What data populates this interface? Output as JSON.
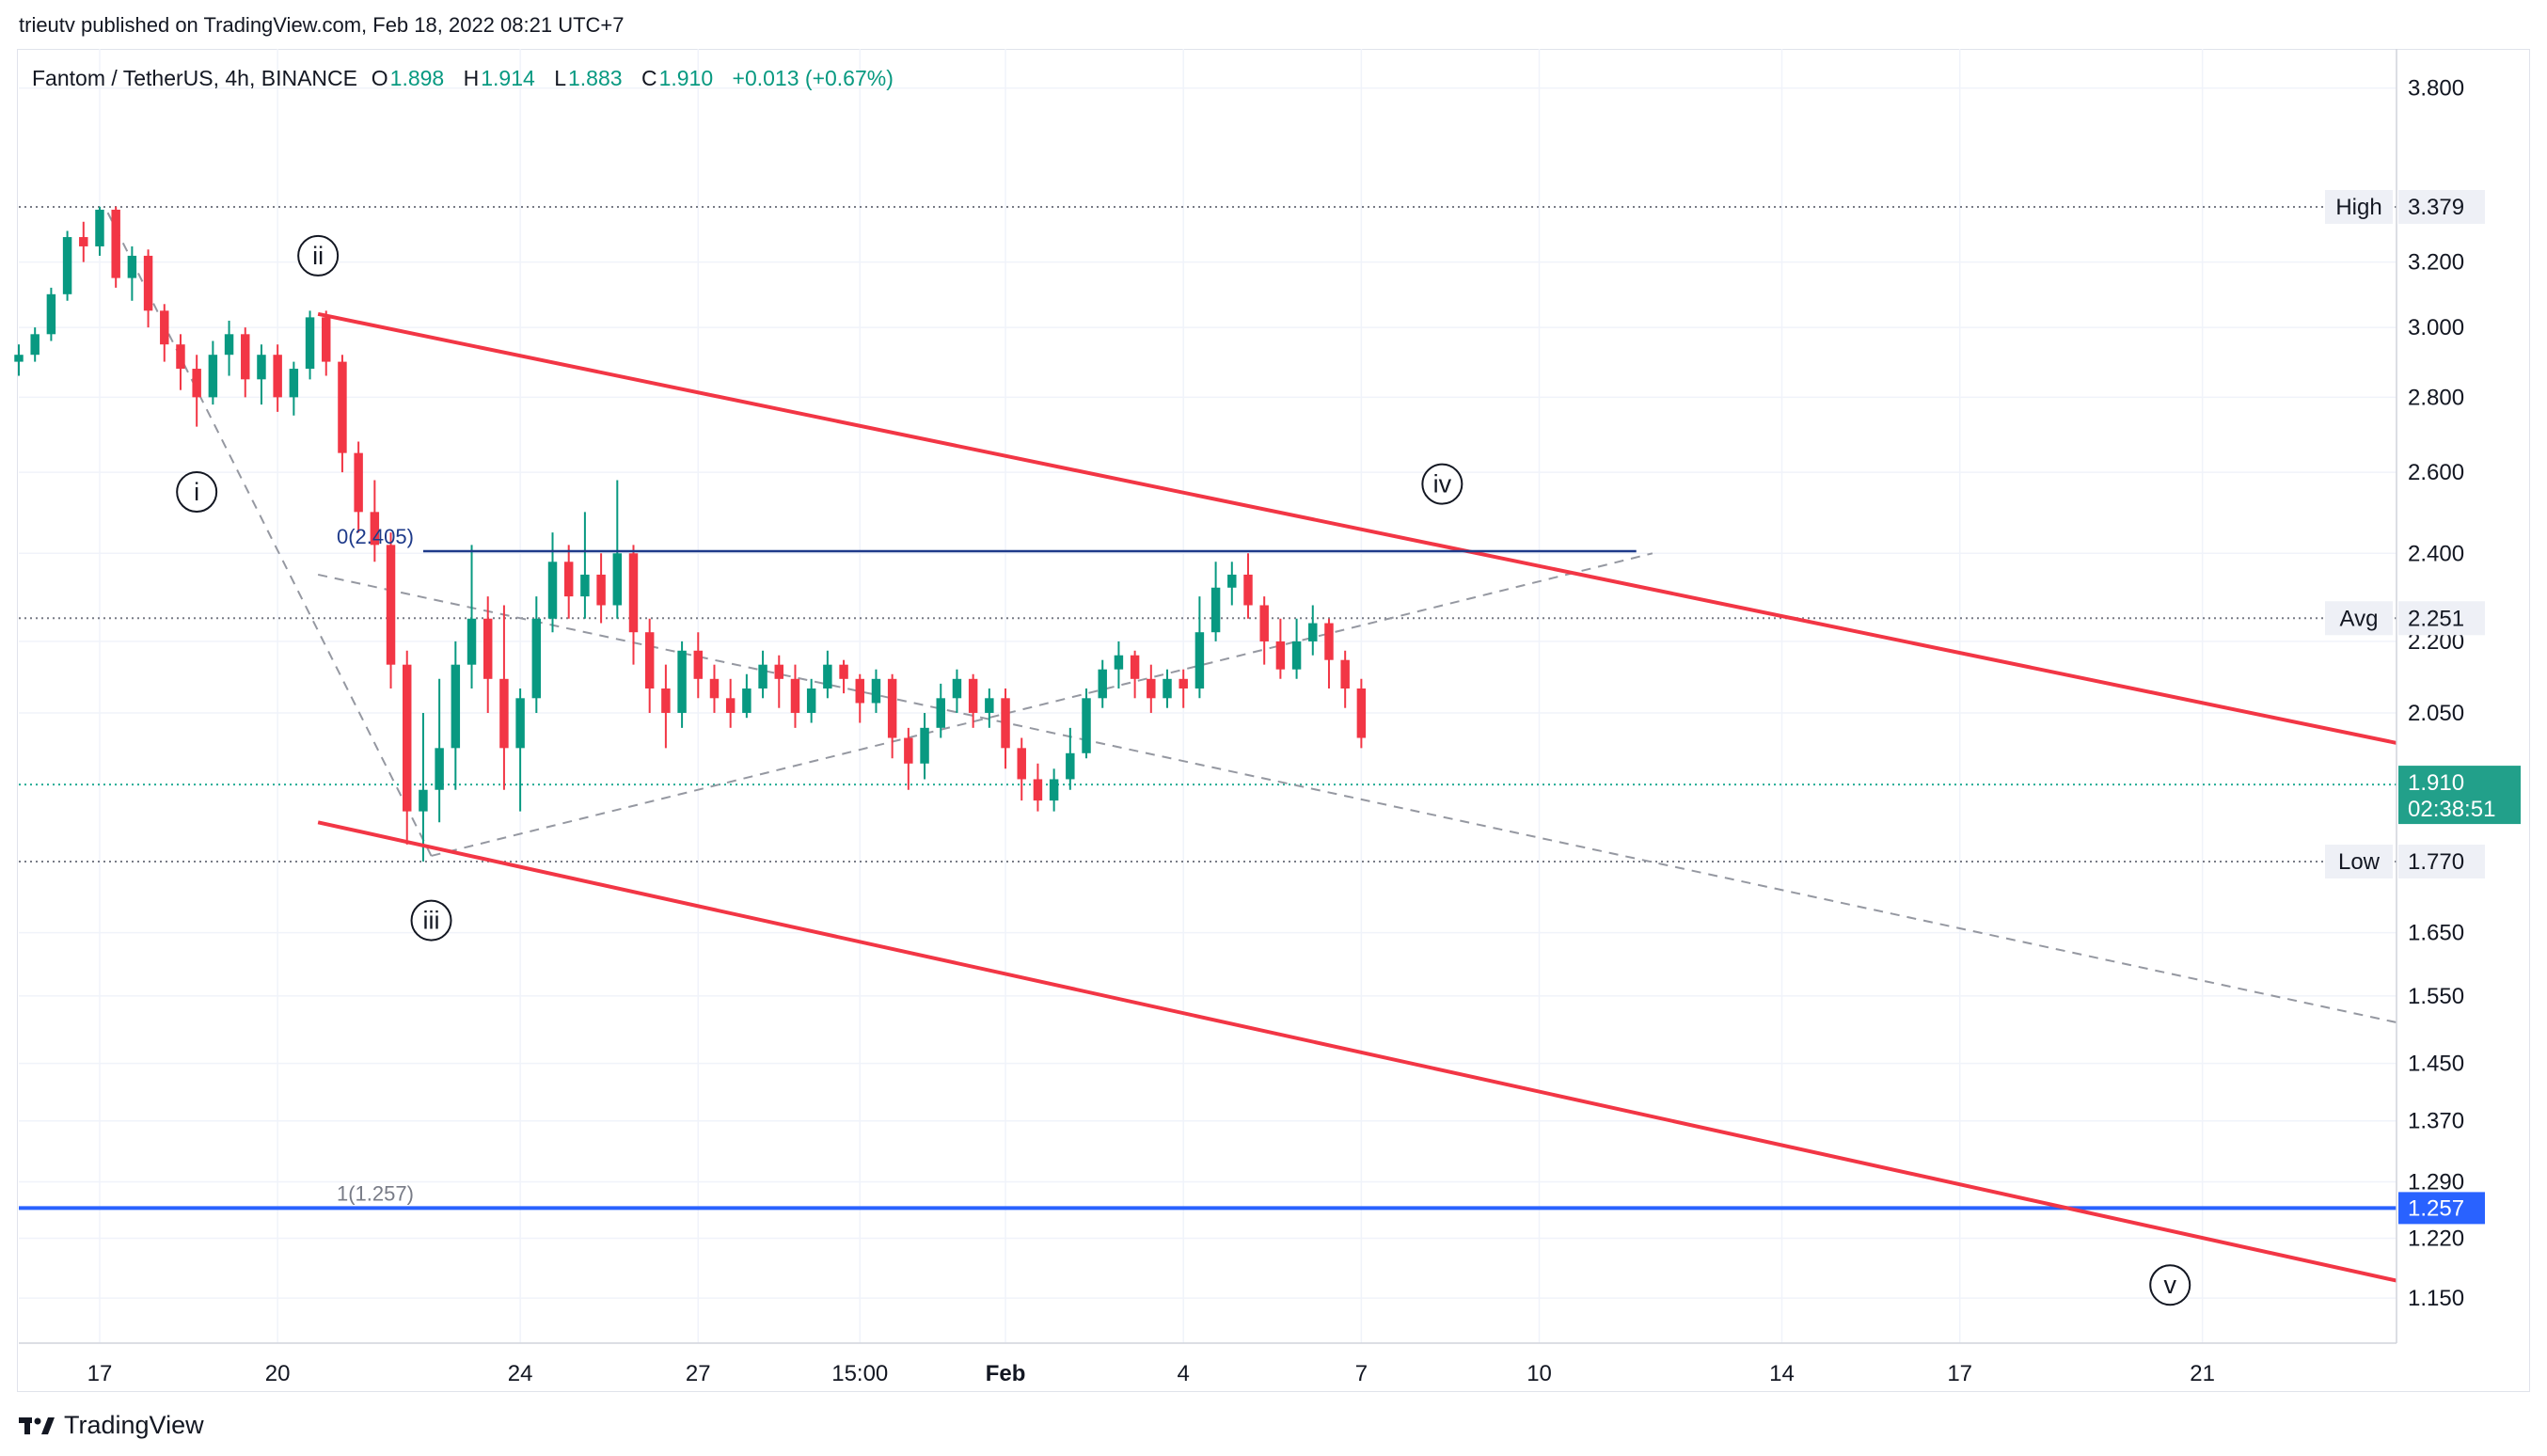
{
  "header": {
    "publisher": "trieutv published on TradingView.com, Feb 18, 2022 08:21 UTC+7"
  },
  "legend": {
    "symbol": "Fantom / TetherUS, 4h, BINANCE",
    "open_label": "O",
    "open": "1.898",
    "high_label": "H",
    "high": "1.914",
    "low_label": "L",
    "low": "1.883",
    "close_label": "C",
    "close": "1.910",
    "change": "+0.013 (+0.67%)"
  },
  "footer": {
    "brand": "TradingView"
  },
  "colors": {
    "up": "#089981",
    "down": "#f23645",
    "channel": "#f23645",
    "fib_line": "#1e3a8a",
    "target_line": "#2962ff",
    "last_price_bg": "#22a08a"
  },
  "chart_data": {
    "type": "candlestick",
    "title": "Fantom / TetherUS, 4h, BINANCE",
    "y_scale": "log",
    "ylim": [
      1.1,
      3.95
    ],
    "x_domain": [
      0,
      147
    ],
    "y_ticks": [
      "3.800",
      "3.200",
      "3.000",
      "2.800",
      "2.600",
      "2.400",
      "2.200",
      "2.050",
      "1.650",
      "1.550",
      "1.450",
      "1.370",
      "1.290",
      "1.220",
      "1.150"
    ],
    "y_tick_values": [
      3.8,
      3.2,
      3.0,
      2.8,
      2.6,
      2.4,
      2.2,
      2.05,
      1.65,
      1.55,
      1.45,
      1.37,
      1.29,
      1.22,
      1.15
    ],
    "x_ticks": [
      {
        "label": "17",
        "x": 5
      },
      {
        "label": "20",
        "x": 16
      },
      {
        "label": "24",
        "x": 31
      },
      {
        "label": "27",
        "x": 42
      },
      {
        "label": "15:00",
        "x": 52
      },
      {
        "label": "Feb",
        "x": 61
      },
      {
        "label": "4",
        "x": 72
      },
      {
        "label": "7",
        "x": 83
      },
      {
        "label": "10",
        "x": 94
      },
      {
        "label": "14",
        "x": 109
      },
      {
        "label": "17",
        "x": 120
      },
      {
        "label": "21",
        "x": 135
      }
    ],
    "price_labels": {
      "high_tag": "High",
      "high_value": "3.379",
      "high_price": 3.379,
      "avg_tag": "Avg",
      "avg_value": "2.251",
      "avg_price": 2.251,
      "low_tag": "Low",
      "low_value": "1.770",
      "low_price": 1.77,
      "last_price": "1.910",
      "last_price_value": 1.91,
      "countdown": "02:38:51",
      "target_value": "1.257",
      "target_price": 1.257
    },
    "fib_levels": [
      {
        "label": "0(2.405)",
        "price": 2.405,
        "x_start": 25,
        "x_end": 100
      },
      {
        "label": "1(1.257)",
        "price": 1.257,
        "x_start": 25,
        "x_end": 100
      }
    ],
    "channel_lines": [
      {
        "name": "upper",
        "x1": 18.5,
        "y1": 3.04,
        "x2": 147,
        "y2": 1.99
      },
      {
        "name": "lower",
        "x1": 18.5,
        "y1": 1.84,
        "x2": 147,
        "y2": 1.17
      }
    ],
    "dashed_lines": [
      {
        "x1": 5.5,
        "y1": 3.36,
        "x2": 25.5,
        "y2": 1.78
      },
      {
        "x1": 25.5,
        "y1": 1.78,
        "x2": 101,
        "y2": 2.4
      },
      {
        "x1": 18.5,
        "y1": 2.35,
        "x2": 147,
        "y2": 1.51
      }
    ],
    "wave_labels": [
      {
        "label": "i",
        "x": 11,
        "y": 2.55
      },
      {
        "label": "ii",
        "x": 18.5,
        "y": 3.22
      },
      {
        "label": "iii",
        "x": 25.5,
        "y": 1.67
      },
      {
        "label": "iv",
        "x": 88,
        "y": 2.57
      },
      {
        "label": "v",
        "x": 133,
        "y": 1.165
      }
    ],
    "candles": [
      [
        0,
        2.9,
        2.92,
        2.86,
        2.95
      ],
      [
        1,
        2.92,
        2.98,
        2.9,
        3.0
      ],
      [
        2,
        2.98,
        3.1,
        2.96,
        3.12
      ],
      [
        3,
        3.1,
        3.28,
        3.08,
        3.3
      ],
      [
        4,
        3.28,
        3.25,
        3.2,
        3.33
      ],
      [
        5,
        3.25,
        3.37,
        3.22,
        3.38
      ],
      [
        6,
        3.37,
        3.15,
        3.12,
        3.38
      ],
      [
        7,
        3.15,
        3.22,
        3.08,
        3.25
      ],
      [
        8,
        3.22,
        3.05,
        3.0,
        3.24
      ],
      [
        9,
        3.05,
        2.95,
        2.9,
        3.07
      ],
      [
        10,
        2.95,
        2.88,
        2.82,
        2.98
      ],
      [
        11,
        2.88,
        2.8,
        2.72,
        2.92
      ],
      [
        12,
        2.8,
        2.92,
        2.78,
        2.96
      ],
      [
        13,
        2.92,
        2.98,
        2.86,
        3.02
      ],
      [
        14,
        2.98,
        2.85,
        2.8,
        3.0
      ],
      [
        15,
        2.85,
        2.92,
        2.78,
        2.95
      ],
      [
        16,
        2.92,
        2.8,
        2.76,
        2.95
      ],
      [
        17,
        2.8,
        2.88,
        2.75,
        2.9
      ],
      [
        18,
        2.88,
        3.03,
        2.85,
        3.05
      ],
      [
        19,
        3.03,
        2.9,
        2.86,
        3.05
      ],
      [
        20,
        2.9,
        2.65,
        2.6,
        2.92
      ],
      [
        21,
        2.65,
        2.5,
        2.45,
        2.68
      ],
      [
        22,
        2.5,
        2.42,
        2.38,
        2.58
      ],
      [
        23,
        2.42,
        2.15,
        2.1,
        2.45
      ],
      [
        24,
        2.15,
        1.86,
        1.8,
        2.18
      ],
      [
        25,
        1.86,
        1.9,
        1.77,
        2.05
      ],
      [
        26,
        1.9,
        1.98,
        1.84,
        2.12
      ],
      [
        27,
        1.98,
        2.15,
        1.9,
        2.2
      ],
      [
        28,
        2.15,
        2.25,
        2.1,
        2.42
      ],
      [
        29,
        2.25,
        2.12,
        2.05,
        2.3
      ],
      [
        30,
        2.12,
        1.98,
        1.9,
        2.28
      ],
      [
        31,
        1.98,
        2.08,
        1.86,
        2.1
      ],
      [
        32,
        2.08,
        2.25,
        2.05,
        2.3
      ],
      [
        33,
        2.25,
        2.38,
        2.22,
        2.45
      ],
      [
        34,
        2.38,
        2.3,
        2.25,
        2.42
      ],
      [
        35,
        2.3,
        2.35,
        2.25,
        2.5
      ],
      [
        36,
        2.35,
        2.28,
        2.24,
        2.4
      ],
      [
        37,
        2.28,
        2.4,
        2.25,
        2.58
      ],
      [
        38,
        2.4,
        2.22,
        2.15,
        2.42
      ],
      [
        39,
        2.22,
        2.1,
        2.05,
        2.25
      ],
      [
        40,
        2.1,
        2.05,
        1.98,
        2.15
      ],
      [
        41,
        2.05,
        2.18,
        2.02,
        2.2
      ],
      [
        42,
        2.18,
        2.12,
        2.08,
        2.22
      ],
      [
        43,
        2.12,
        2.08,
        2.05,
        2.15
      ],
      [
        44,
        2.08,
        2.05,
        2.02,
        2.12
      ],
      [
        45,
        2.05,
        2.1,
        2.04,
        2.13
      ],
      [
        46,
        2.1,
        2.15,
        2.08,
        2.18
      ],
      [
        47,
        2.15,
        2.12,
        2.06,
        2.17
      ],
      [
        48,
        2.12,
        2.05,
        2.02,
        2.15
      ],
      [
        49,
        2.05,
        2.1,
        2.03,
        2.12
      ],
      [
        50,
        2.1,
        2.15,
        2.08,
        2.18
      ],
      [
        51,
        2.15,
        2.12,
        2.09,
        2.16
      ],
      [
        52,
        2.12,
        2.07,
        2.03,
        2.13
      ],
      [
        53,
        2.07,
        2.12,
        2.05,
        2.14
      ],
      [
        54,
        2.12,
        2.0,
        1.96,
        2.13
      ],
      [
        55,
        2.0,
        1.95,
        1.9,
        2.02
      ],
      [
        56,
        1.95,
        2.02,
        1.92,
        2.05
      ],
      [
        57,
        2.02,
        2.08,
        2.0,
        2.11
      ],
      [
        58,
        2.08,
        2.12,
        2.05,
        2.14
      ],
      [
        59,
        2.12,
        2.05,
        2.02,
        2.13
      ],
      [
        60,
        2.05,
        2.08,
        2.02,
        2.1
      ],
      [
        61,
        2.08,
        1.98,
        1.94,
        2.1
      ],
      [
        62,
        1.98,
        1.92,
        1.88,
        2.0
      ],
      [
        63,
        1.92,
        1.88,
        1.86,
        1.95
      ],
      [
        64,
        1.88,
        1.92,
        1.86,
        1.94
      ],
      [
        65,
        1.92,
        1.97,
        1.9,
        2.02
      ],
      [
        66,
        1.97,
        2.08,
        1.96,
        2.1
      ],
      [
        67,
        2.08,
        2.14,
        2.06,
        2.16
      ],
      [
        68,
        2.14,
        2.17,
        2.1,
        2.2
      ],
      [
        69,
        2.17,
        2.12,
        2.08,
        2.18
      ],
      [
        70,
        2.12,
        2.08,
        2.05,
        2.15
      ],
      [
        71,
        2.08,
        2.12,
        2.06,
        2.14
      ],
      [
        72,
        2.12,
        2.1,
        2.06,
        2.14
      ],
      [
        73,
        2.1,
        2.22,
        2.08,
        2.3
      ],
      [
        74,
        2.22,
        2.32,
        2.2,
        2.38
      ],
      [
        75,
        2.32,
        2.35,
        2.28,
        2.38
      ],
      [
        76,
        2.35,
        2.28,
        2.25,
        2.4
      ],
      [
        77,
        2.28,
        2.2,
        2.15,
        2.3
      ],
      [
        78,
        2.2,
        2.14,
        2.12,
        2.25
      ],
      [
        79,
        2.14,
        2.2,
        2.12,
        2.25
      ],
      [
        80,
        2.2,
        2.24,
        2.17,
        2.28
      ],
      [
        81,
        2.24,
        2.16,
        2.1,
        2.25
      ],
      [
        82,
        2.16,
        2.1,
        2.06,
        2.18
      ],
      [
        83,
        2.1,
        2.0,
        1.98,
        2.12
      ]
    ]
  }
}
